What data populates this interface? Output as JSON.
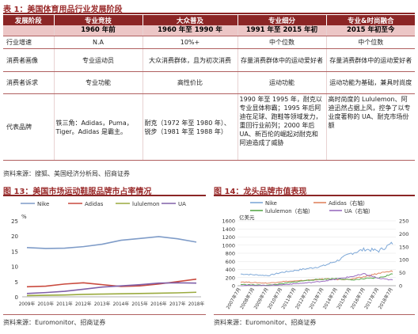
{
  "table1": {
    "title": "表 1：美国体育用品行业发展阶段",
    "header": [
      "发展阶段",
      "专业竞技",
      "大众普及",
      "专业细分",
      "专业&时尚融合"
    ],
    "periods": [
      "1960 年前",
      "1960 年至 1990 年",
      "1991 年至 2015 年初",
      "2015 年初至今"
    ],
    "rows": [
      {
        "label": "行业增速",
        "cells": [
          "N.A",
          "10%+",
          "中个位数",
          "中个位数"
        ]
      },
      {
        "label": "消费者画像",
        "cells": [
          "专业运动员",
          "大众消费群体，且为初次消费",
          "存量消费群体中的运动爱好者",
          "存量消费群体中的运动爱好者"
        ]
      },
      {
        "label": "消费者诉求",
        "cells": [
          "专业功能",
          "高性价比",
          "运动功能",
          "运动功能为基础，兼具时尚度"
        ]
      },
      {
        "label": "代表品牌",
        "cells": [
          "铁三角：Adidas，Puma，Tiger。Adidas 是霸主。",
          "耐克（1972 年至 1980 年）、锐步（1981 年至 1988 年）",
          "1990 年至 1995 年，耐克以专业显体称霸；1995 年后阿迪在足球、跑鞋等领域发力，重回行业前列；2000 年后 UA、新百伦的崛起对耐克和阿迪造成了威胁",
          "高时尚度的 Lululemon、阿迪迅然占据上风，控争了以专业度著称的 UA、耐克市场份额"
        ]
      }
    ],
    "source": "资料来源：搜狐、美国经济分析局、招商证券"
  },
  "chart13": {
    "title": "图 13：美国市场运动鞋服品牌市占率情况",
    "source": "资料来源：Euromonitor、招商证券"
  },
  "chart14": {
    "title": "图 14：龙头品牌市值表现",
    "unit": "亿美元",
    "source": "资料来源：Euromonitor、招商证券"
  },
  "chart_data": [
    {
      "type": "line",
      "ylabel": "%",
      "ylim": [
        0,
        25
      ],
      "yticks": [
        "0",
        "5",
        "10",
        "15",
        "20",
        "25"
      ],
      "categories": [
        "2009年",
        "2010年",
        "2011年",
        "2012年",
        "2013年",
        "2014年",
        "2015年",
        "2016年",
        "2017年",
        "2018年"
      ],
      "series": [
        {
          "name": "Nike",
          "color": "#7f9cc8",
          "values": [
            16.2,
            15.9,
            16.0,
            16.5,
            17.3,
            18.6,
            19.2,
            19.8,
            19.1,
            18.0
          ]
        },
        {
          "name": "Adidas",
          "color": "#c94a3e",
          "values": [
            3.3,
            3.5,
            4.2,
            4.6,
            4.0,
            3.4,
            3.6,
            4.2,
            5.0,
            5.8
          ]
        },
        {
          "name": "lululemon",
          "color": "#9aaa3e",
          "values": [
            0.4,
            0.5,
            0.6,
            0.8,
            0.9,
            1.0,
            1.1,
            1.2,
            1.3,
            1.5
          ]
        },
        {
          "name": "UA",
          "color": "#8060a8",
          "values": [
            1.1,
            1.4,
            1.8,
            2.5,
            3.2,
            3.6,
            4.0,
            4.5,
            4.6,
            4.5
          ]
        }
      ],
      "legend": "top",
      "grid": false
    },
    {
      "type": "line",
      "ylabel": "亿美元",
      "ylim": [
        0,
        1600
      ],
      "yticks": [
        "0",
        "200",
        "400",
        "600",
        "800",
        "1000",
        "1200",
        "1400",
        "1600"
      ],
      "y2ticks": [
        "0",
        "50",
        "100",
        "150",
        "200",
        "250"
      ],
      "xticks": [
        "2007年7月",
        "2008年7月",
        "2009年7月",
        "2010年7月",
        "2011年7月",
        "2012年7月",
        "2013年7月",
        "2014年7月",
        "2015年7月",
        "2016年7月",
        "2017年7月",
        "2018年7月"
      ],
      "series": [
        {
          "name": "Nike",
          "color": "#7fa9d8",
          "values": [
            290,
            270,
            250,
            330,
            380,
            430,
            490,
            620,
            800,
            900,
            860,
            1050
          ]
        },
        {
          "name": "Adidas（右轴）",
          "color": "#e08560",
          "values": [
            15,
            12,
            10,
            16,
            18,
            22,
            26,
            24,
            25,
            35,
            48,
            55
          ]
        },
        {
          "name": "lululemon（右轴）",
          "color": "#58a84a",
          "values": [
            5,
            3,
            2,
            8,
            15,
            22,
            25,
            28,
            22,
            27,
            30,
            45
          ]
        },
        {
          "name": "UA（右轴）",
          "color": "#9a6cc0",
          "values": [
            1,
            1,
            1,
            4,
            8,
            12,
            18,
            26,
            35,
            45,
            28,
            22
          ]
        }
      ],
      "legend": "top",
      "grid": true
    }
  ]
}
